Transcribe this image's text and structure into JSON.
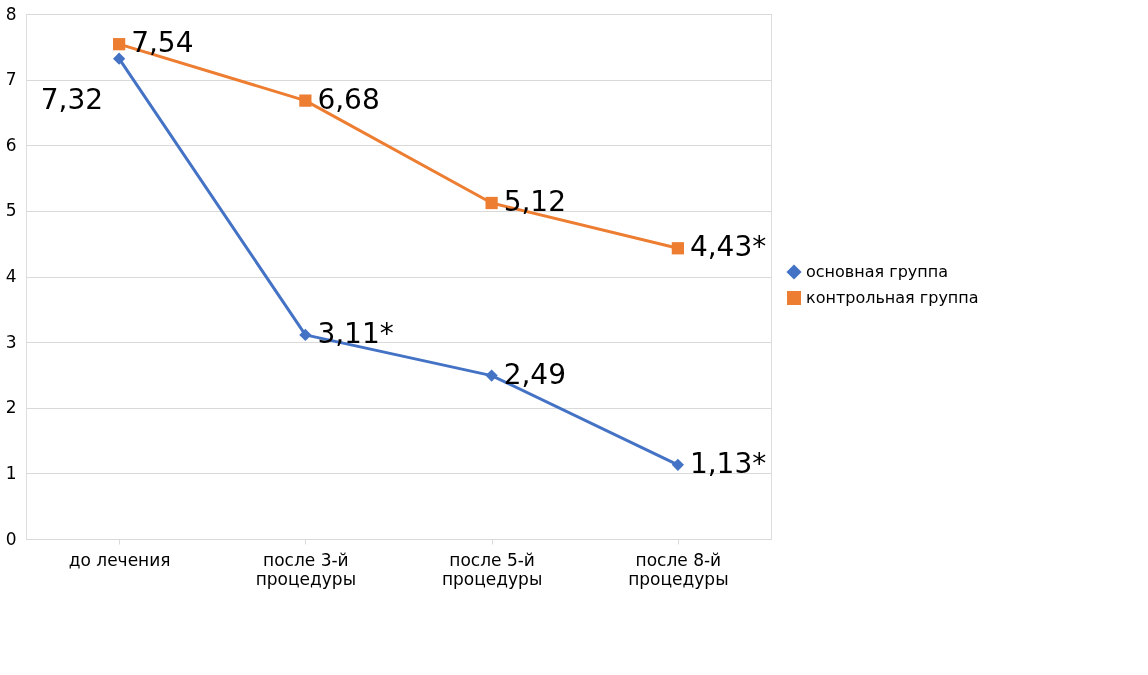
{
  "chart_data": {
    "type": "line",
    "categories": [
      "до лечения",
      "после 3-й процедуры",
      "после 5-й процедуры",
      "после 8-й процедуры"
    ],
    "series": [
      {
        "name": "основная группа",
        "color": "#4472c4",
        "marker": "diamond",
        "values": [
          7.32,
          3.11,
          2.49,
          1.13
        ],
        "value_labels": [
          "7,32",
          "3,11*",
          "2,49",
          "1,13*"
        ]
      },
      {
        "name": "контрольная группа",
        "color": "#ed7d31",
        "marker": "square",
        "values": [
          7.54,
          6.68,
          5.12,
          4.43
        ],
        "value_labels": [
          "7,54",
          "6,68",
          "5,12",
          "4,43*"
        ]
      }
    ],
    "ylim": [
      0,
      8
    ],
    "yticks": [
      0,
      1,
      2,
      3,
      4,
      5,
      6,
      7,
      8
    ],
    "grid": "y",
    "legend": "right"
  }
}
